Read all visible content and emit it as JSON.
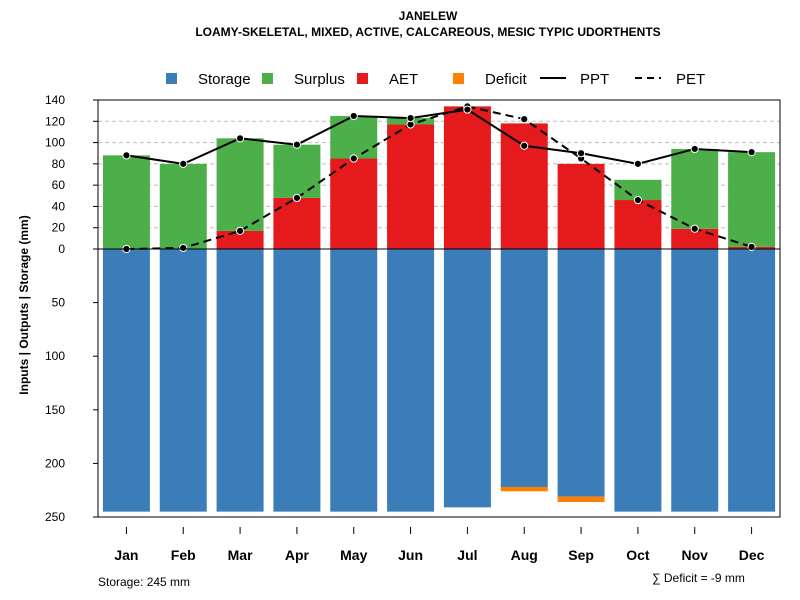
{
  "chart_data": {
    "type": "bar",
    "title": "JANELEW",
    "subtitle": "LOAMY-SKELETAL, MIXED, ACTIVE, CALCAREOUS, MESIC TYPIC UDORTHENTS",
    "ylabel": "Inputs | Outputs | Storage     (mm)",
    "categories": [
      "Jan",
      "Feb",
      "Mar",
      "Apr",
      "May",
      "Jun",
      "Jul",
      "Aug",
      "Sep",
      "Oct",
      "Nov",
      "Dec"
    ],
    "upper_ticks": [
      "0",
      "20",
      "40",
      "60",
      "80",
      "100",
      "120",
      "140"
    ],
    "lower_ticks": [
      "50",
      "100",
      "150",
      "200",
      "250"
    ],
    "upper_ylim": [
      0,
      140
    ],
    "lower_ylim": [
      0,
      250
    ],
    "legend": {
      "storage": "Storage",
      "surplus": "Surplus",
      "aet": "AET",
      "deficit": "Deficit",
      "ppt": "PPT",
      "pet": "PET",
      "position": "top"
    },
    "series": {
      "aet": [
        0,
        0,
        17,
        48,
        85,
        117,
        134,
        118,
        80,
        46,
        19,
        2
      ],
      "surplus": [
        88,
        80,
        87,
        50,
        40,
        6,
        0,
        0,
        0,
        19,
        75,
        89
      ],
      "ppt": [
        88,
        80,
        104,
        98,
        125,
        123,
        131,
        97,
        90,
        80,
        94,
        91
      ],
      "pet": [
        0,
        1,
        17,
        48,
        85,
        117,
        134,
        122,
        85,
        46,
        19,
        2
      ],
      "storage": [
        245,
        245,
        245,
        245,
        245,
        245,
        241,
        222,
        231,
        245,
        245,
        245
      ],
      "deficit": [
        0,
        0,
        0,
        0,
        0,
        0,
        0,
        4,
        5,
        0,
        0,
        0
      ]
    },
    "storage_note": "Storage: 245 mm",
    "deficit_note": "∑ Deficit = -9 mm"
  },
  "colors": {
    "storage": "#3A7DB8",
    "surplus": "#4DAF4A",
    "aet": "#E41A1C",
    "deficit": "#FF7F00",
    "line": "#000000",
    "grid": "#BBBBBB"
  }
}
